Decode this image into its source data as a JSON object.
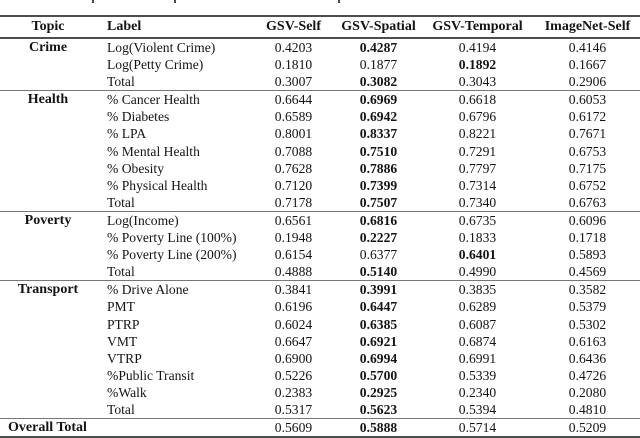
{
  "table": {
    "columns": [
      "Topic",
      "Label",
      "GSV-Self",
      "GSV-Spatial",
      "GSV-Temporal",
      "ImageNet-Self"
    ],
    "sections": [
      {
        "topic": "Crime",
        "rows": [
          {
            "label": "Log(Violent Crime)",
            "values": [
              "0.4203",
              "0.4287",
              "0.4194",
              "0.4146"
            ],
            "bold_index": 1
          },
          {
            "label": "Log(Petty Crime)",
            "values": [
              "0.1810",
              "0.1877",
              "0.1892",
              "0.1667"
            ],
            "bold_index": 2
          },
          {
            "label": "Total",
            "values": [
              "0.3007",
              "0.3082",
              "0.3043",
              "0.2906"
            ],
            "bold_index": 1
          }
        ]
      },
      {
        "topic": "Health",
        "rows": [
          {
            "label": "% Cancer Health",
            "values": [
              "0.6644",
              "0.6969",
              "0.6618",
              "0.6053"
            ],
            "bold_index": 1
          },
          {
            "label": "% Diabetes",
            "values": [
              "0.6589",
              "0.6942",
              "0.6796",
              "0.6172"
            ],
            "bold_index": 1
          },
          {
            "label": "% LPA",
            "values": [
              "0.8001",
              "0.8337",
              "0.8221",
              "0.7671"
            ],
            "bold_index": 1
          },
          {
            "label": "% Mental Health",
            "values": [
              "0.7088",
              "0.7510",
              "0.7291",
              "0.6753"
            ],
            "bold_index": 1
          },
          {
            "label": "% Obesity",
            "values": [
              "0.7628",
              "0.7886",
              "0.7797",
              "0.7175"
            ],
            "bold_index": 1
          },
          {
            "label": "% Physical Health",
            "values": [
              "0.7120",
              "0.7399",
              "0.7314",
              "0.6752"
            ],
            "bold_index": 1
          },
          {
            "label": "Total",
            "values": [
              "0.7178",
              "0.7507",
              "0.7340",
              "0.6763"
            ],
            "bold_index": 1
          }
        ]
      },
      {
        "topic": "Poverty",
        "rows": [
          {
            "label": "Log(Income)",
            "values": [
              "0.6561",
              "0.6816",
              "0.6735",
              "0.6096"
            ],
            "bold_index": 1
          },
          {
            "label": "% Poverty Line (100%)",
            "values": [
              "0.1948",
              "0.2227",
              "0.1833",
              "0.1718"
            ],
            "bold_index": 1
          },
          {
            "label": "% Poverty Line (200%)",
            "values": [
              "0.6154",
              "0.6377",
              "0.6401",
              "0.5893"
            ],
            "bold_index": 2
          },
          {
            "label": "Total",
            "values": [
              "0.4888",
              "0.5140",
              "0.4990",
              "0.4569"
            ],
            "bold_index": 1
          }
        ]
      },
      {
        "topic": "Transport",
        "rows": [
          {
            "label": "% Drive Alone",
            "values": [
              "0.3841",
              "0.3991",
              "0.3835",
              "0.3582"
            ],
            "bold_index": 1
          },
          {
            "label": "PMT",
            "values": [
              "0.6196",
              "0.6447",
              "0.6289",
              "0.5379"
            ],
            "bold_index": 1
          },
          {
            "label": "PTRP",
            "values": [
              "0.6024",
              "0.6385",
              "0.6087",
              "0.5302"
            ],
            "bold_index": 1
          },
          {
            "label": "VMT",
            "values": [
              "0.6647",
              "0.6921",
              "0.6874",
              "0.6163"
            ],
            "bold_index": 1
          },
          {
            "label": "VTRP",
            "values": [
              "0.6900",
              "0.6994",
              "0.6991",
              "0.6436"
            ],
            "bold_index": 1
          },
          {
            "label": "%Public Transit",
            "values": [
              "0.5226",
              "0.5700",
              "0.5339",
              "0.4726"
            ],
            "bold_index": 1
          },
          {
            "label": "%Walk",
            "values": [
              "0.2383",
              "0.2925",
              "0.2340",
              "0.2080"
            ],
            "bold_index": 1
          },
          {
            "label": "Total",
            "values": [
              "0.5317",
              "0.5623",
              "0.5394",
              "0.4810"
            ],
            "bold_index": 1
          }
        ]
      }
    ],
    "footer": {
      "label": "Overall Total",
      "values": [
        "0.5609",
        "0.5888",
        "0.5714",
        "0.5209"
      ],
      "bold_index": 1
    }
  }
}
